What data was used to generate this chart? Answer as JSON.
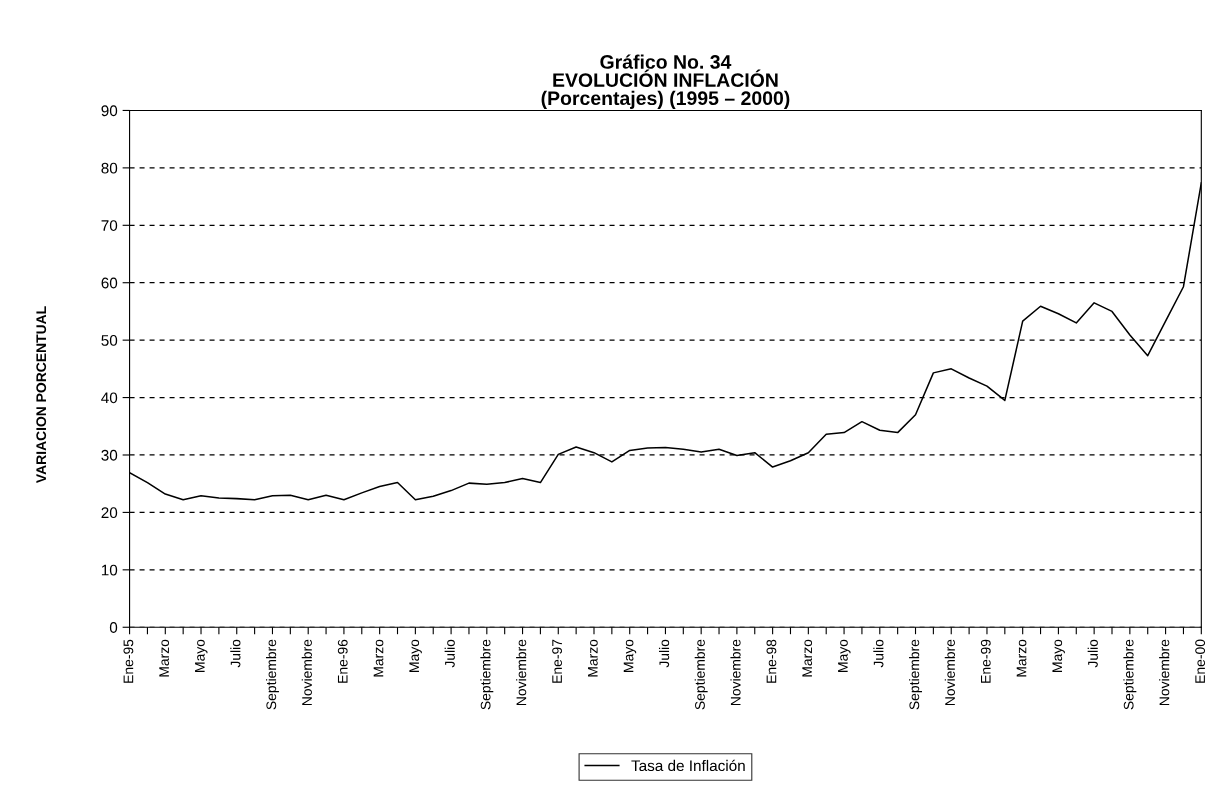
{
  "chart_data": {
    "type": "line",
    "title": "Gráfico No. 34\nEVOLUCIÓN INFLACIÓN\n(Porcentajes) (1995 – 2000)",
    "ylabel": "VARIACION PORCENTUAL",
    "categories": [
      "Ene-95",
      null,
      "Marzo",
      null,
      "Mayo",
      null,
      "Julio",
      null,
      "Septiembre",
      null,
      "Noviembre",
      null,
      "Ene-96",
      null,
      "Marzo",
      null,
      "Mayo",
      null,
      "Julio",
      null,
      "Septiembre",
      null,
      "Noviembre",
      null,
      "Ene-97",
      null,
      "Marzo",
      null,
      "Mayo",
      null,
      "Julio",
      null,
      "Septiembre",
      null,
      "Noviembre",
      null,
      "Ene-98",
      null,
      "Marzo",
      null,
      "Mayo",
      null,
      "Julio",
      null,
      "Septiembre",
      null,
      "Noviembre",
      null,
      "Ene-99",
      null,
      "Marzo",
      null,
      "Mayo",
      null,
      "Julio",
      null,
      "Septiembre",
      null,
      "Noviembre",
      null,
      "Ene-00"
    ],
    "series": [
      {
        "name": "Tasa de Inflación",
        "color": "#000000",
        "values": [
          26.9,
          25.2,
          23.2,
          22.2,
          22.9,
          22.5,
          22.4,
          22.2,
          22.9,
          23.0,
          22.2,
          23.0,
          22.2,
          23.4,
          24.5,
          25.2,
          22.2,
          22.8,
          23.8,
          25.1,
          24.9,
          25.2,
          25.9,
          25.2,
          30.1,
          31.4,
          30.4,
          28.8,
          30.8,
          31.2,
          31.3,
          31.0,
          30.5,
          31.0,
          29.9,
          30.4,
          27.9,
          29.0,
          30.4,
          33.6,
          33.9,
          35.8,
          34.3,
          33.9,
          37.0,
          44.3,
          45.0,
          43.4,
          42.0,
          39.5,
          53.3,
          55.9,
          54.6,
          53.0,
          56.5,
          55.0,
          50.9,
          47.3,
          53.3,
          59.3,
          77.4
        ]
      }
    ],
    "ylim": [
      0,
      90
    ],
    "yticks": [
      0,
      10,
      20,
      30,
      40,
      50,
      60,
      70,
      80,
      90
    ],
    "grid": "y",
    "legend": "bottom",
    "marker": "none",
    "line_style": "solid"
  }
}
